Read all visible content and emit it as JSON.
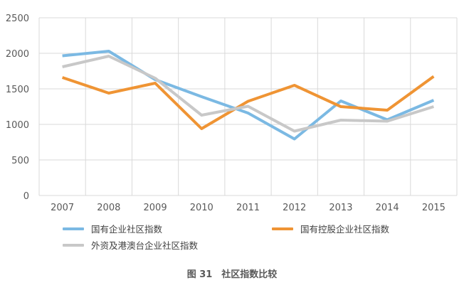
{
  "chart_data": {
    "type": "line",
    "title": "",
    "xlabel": "",
    "ylabel": "",
    "ylim": [
      0,
      2500
    ],
    "y_ticks": [
      0,
      500,
      1000,
      1500,
      2000,
      2500
    ],
    "grid": "both",
    "legend_position": "bottom",
    "categories": [
      "2007",
      "2008",
      "2009",
      "2010",
      "2011",
      "2012",
      "2013",
      "2014",
      "2015"
    ],
    "series": [
      {
        "name": "国有企业社区指数",
        "color": "#7bb9e3",
        "values": [
          1965,
          2030,
          1630,
          1390,
          1160,
          795,
          1330,
          1065,
          1340
        ]
      },
      {
        "name": "国有控股企业社区指数",
        "color": "#ef9434",
        "values": [
          1660,
          1440,
          1580,
          940,
          1325,
          1550,
          1250,
          1200,
          1675
        ]
      },
      {
        "name": "外资及港澳台企业社区指数",
        "color": "#c8c8c8",
        "values": [
          1810,
          1960,
          1650,
          1130,
          1255,
          905,
          1060,
          1045,
          1250
        ]
      }
    ]
  },
  "caption": "图 31　社区指数比较"
}
